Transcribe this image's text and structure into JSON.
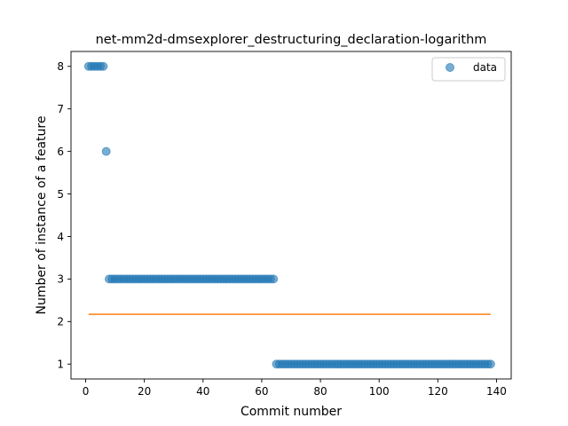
{
  "chart_data": {
    "type": "scatter",
    "title": "net-mm2d-dmsexplorer_destructuring_declaration-logarithm",
    "xlabel": "Commit number",
    "ylabel": "Number of instance of a feature",
    "xlim": [
      -5,
      145
    ],
    "ylim": [
      0.65,
      8.35
    ],
    "xticks": [
      0,
      20,
      40,
      60,
      80,
      100,
      120,
      140
    ],
    "yticks": [
      1,
      2,
      3,
      4,
      5,
      6,
      7,
      8
    ],
    "grid": false,
    "legend_position": "top-right",
    "series": [
      {
        "name": "data",
        "kind": "scatter",
        "color": "#1f77b4",
        "alpha": 0.6,
        "segments": [
          {
            "x_start": 1,
            "x_end": 6,
            "y": 8
          },
          {
            "x_start": 7,
            "x_end": 7,
            "y": 6
          },
          {
            "x_start": 8,
            "x_end": 64,
            "y": 3
          },
          {
            "x_start": 65,
            "x_end": 138,
            "y": 1
          }
        ]
      },
      {
        "kind": "line",
        "color": "#ff7f0e",
        "x": [
          1,
          138
        ],
        "y": [
          2.17,
          2.17
        ]
      }
    ]
  }
}
